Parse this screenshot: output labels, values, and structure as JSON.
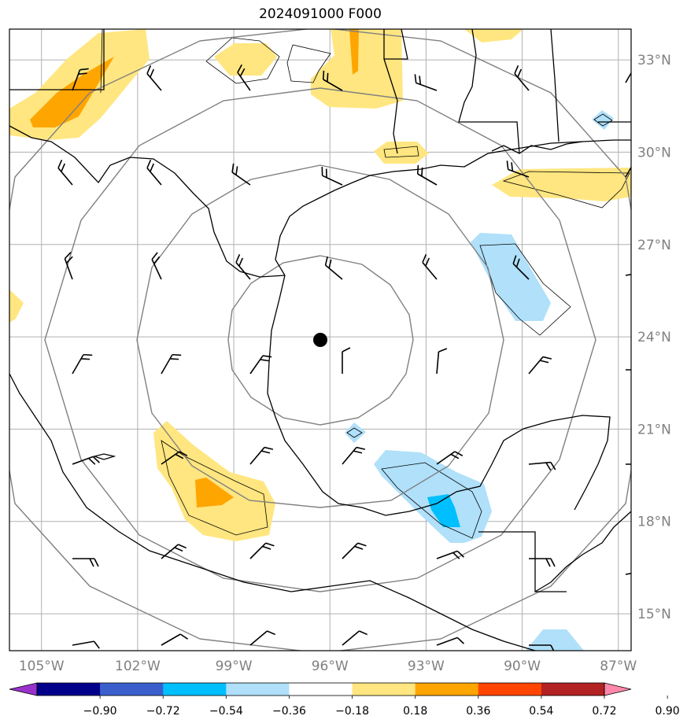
{
  "title": "2024091000 F000",
  "map": {
    "lon_range": [
      -106,
      -86.6
    ],
    "lat_range": [
      13.8,
      34.0
    ],
    "lon_ticks": [
      {
        "value": -105,
        "label": "105°W"
      },
      {
        "value": -102,
        "label": "102°W"
      },
      {
        "value": -99,
        "label": "99°W"
      },
      {
        "value": -96,
        "label": "96°W"
      },
      {
        "value": -93,
        "label": "93°W"
      },
      {
        "value": -90,
        "label": "90°W"
      },
      {
        "value": -87,
        "label": "87°W"
      }
    ],
    "lat_ticks": [
      {
        "value": 33,
        "label": "33°N"
      },
      {
        "value": 30,
        "label": "30°N"
      },
      {
        "value": 27,
        "label": "27°N"
      },
      {
        "value": 24,
        "label": "24°N"
      },
      {
        "value": 21,
        "label": "21°N"
      },
      {
        "value": 18,
        "label": "18°N"
      },
      {
        "value": 15,
        "label": "15°N"
      }
    ],
    "center": {
      "lon": -96.0,
      "lat": 24.0
    },
    "range_rings_deg": [
      3,
      6,
      9,
      12,
      15
    ],
    "grid": true,
    "colors": {
      "land_line": "#000000",
      "grid": "#b0b0b0",
      "ring": "#808080"
    }
  },
  "colorbar": {
    "labels": [
      "−0.90",
      "−0.72",
      "−0.54",
      "−0.36",
      "−0.18",
      "0.18",
      "0.36",
      "0.54",
      "0.72",
      "0.90"
    ],
    "colors": [
      "#9932cc",
      "#00008b",
      "#3a5fcd",
      "#00bfff",
      "#b0e0fa",
      "#ffffff",
      "#ffe680",
      "#ffa500",
      "#ff4500",
      "#b22222",
      "#ff88aa"
    ]
  }
}
